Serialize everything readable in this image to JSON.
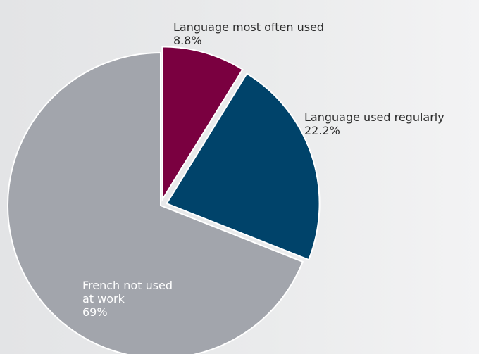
{
  "chart_data": {
    "type": "pie",
    "title": "",
    "slices": [
      {
        "label": "Language most often used",
        "value": 8.8,
        "value_label": "8.8%",
        "color": "#7a0040",
        "exploded": true
      },
      {
        "label": "Language used regularly",
        "value": 22.2,
        "value_label": "22.2%",
        "color": "#00436a",
        "exploded": true
      },
      {
        "label": "French not used\nat work",
        "value": 69,
        "value_label": "69%",
        "color": "#a2a5ac",
        "exploded": false
      }
    ],
    "legend": "none"
  }
}
